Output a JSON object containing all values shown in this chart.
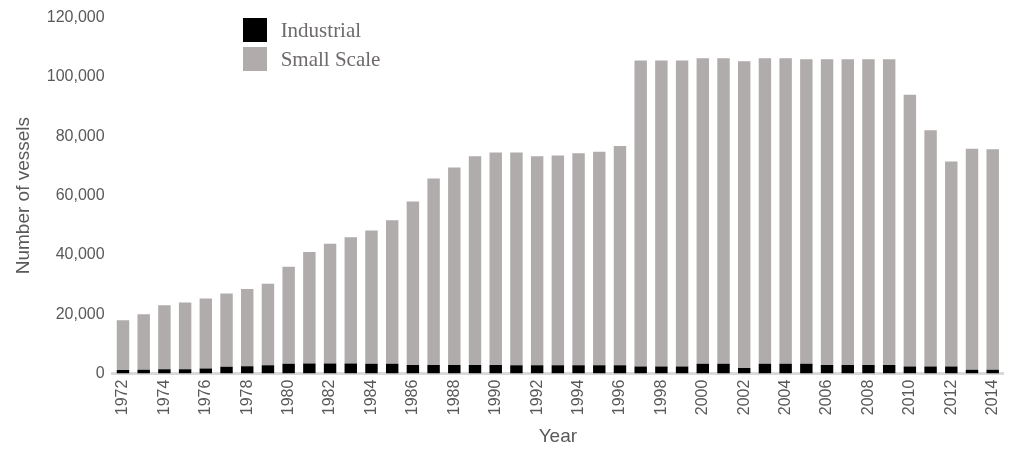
{
  "chart_data": {
    "type": "bar",
    "stacked": true,
    "xlabel": "Year",
    "ylabel": "Number of vessels",
    "categories": [
      "1972",
      null,
      "1974",
      null,
      "1976",
      null,
      "1978",
      null,
      "1980",
      null,
      "1982",
      null,
      "1984",
      null,
      "1986",
      null,
      "1988",
      null,
      "1990",
      null,
      "1992",
      null,
      "1994",
      null,
      "1996",
      null,
      "1998",
      null,
      "2000",
      null,
      "2002",
      null,
      "2004",
      null,
      "2006",
      null,
      "2008",
      null,
      "2010",
      null,
      "2012",
      null,
      "2014"
    ],
    "series": [
      {
        "name": "Industrial",
        "color": "#000000",
        "values": [
          1200,
          1300,
          1500,
          1500,
          1700,
          2300,
          2500,
          2800,
          3300,
          3400,
          3400,
          3400,
          3300,
          3300,
          2900,
          2900,
          2900,
          2900,
          2900,
          2800,
          2800,
          2800,
          2800,
          2800,
          2800,
          2400,
          2400,
          2400,
          3300,
          3300,
          1900,
          3300,
          3300,
          3300,
          2900,
          2900,
          2900,
          2900,
          2400,
          2400,
          2400,
          1300,
          1300
        ]
      },
      {
        "name": "Small Scale",
        "color": "#afacab",
        "values": [
          16800,
          18700,
          21500,
          22500,
          23600,
          24700,
          26000,
          27500,
          32700,
          37600,
          40400,
          42600,
          44900,
          48400,
          55100,
          62900,
          66600,
          70400,
          71600,
          71700,
          70500,
          70700,
          71500,
          72000,
          73900,
          103100,
          103100,
          103100,
          103000,
          103000,
          103400,
          103000,
          103000,
          102700,
          103100,
          103100,
          103100,
          103100,
          91600,
          79600,
          69100,
          74500,
          74300
        ]
      }
    ],
    "ylim": [
      0,
      120000
    ],
    "yticks": [
      0,
      {
        "value": 20000,
        "label": "20,000"
      },
      {
        "value": 40000,
        "label": "40,000"
      },
      {
        "value": 60000,
        "label": "60,000"
      },
      {
        "value": 80000,
        "label": "80,000"
      },
      {
        "value": 100000,
        "label": "100,000"
      },
      {
        "value": 120000,
        "label": "120,000"
      }
    ],
    "grid": false,
    "legend": "top left"
  }
}
